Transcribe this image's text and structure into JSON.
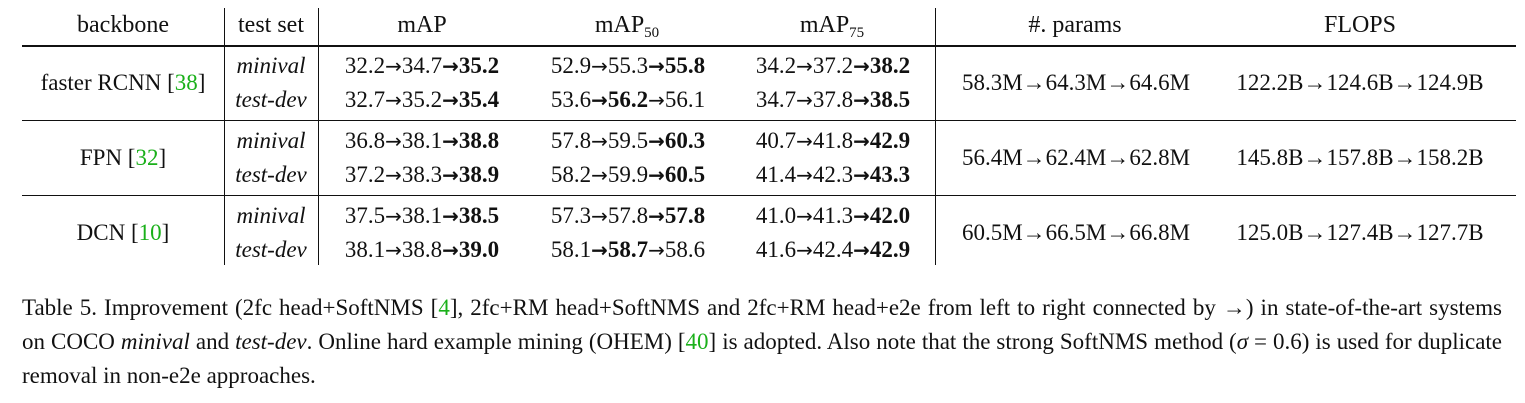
{
  "headers": {
    "backbone": "backbone",
    "test_set": "test set",
    "map": "mAP",
    "map50_base": "mAP",
    "map50_sub": "50",
    "map75_base": "mAP",
    "map75_sub": "75",
    "params": "#. params",
    "flops": "FLOPS"
  },
  "arrow": "→",
  "groups": [
    {
      "backbone": "faster RCNN",
      "cite": "38",
      "params": "58.3M→64.3M→64.6M",
      "flops": "122.2B→124.6B→124.9B",
      "rows": [
        {
          "set": "minival",
          "map": [
            "32.2",
            "34.7",
            "35.2"
          ],
          "map_bold": 2,
          "map50": [
            "52.9",
            "55.3",
            "55.8"
          ],
          "map50_bold": 2,
          "map75": [
            "34.2",
            "37.2",
            "38.2"
          ],
          "map75_bold": 2
        },
        {
          "set": "test-dev",
          "map": [
            "32.7",
            "35.2",
            "35.4"
          ],
          "map_bold": 2,
          "map50": [
            "53.6",
            "56.2",
            "56.1"
          ],
          "map50_bold": 1,
          "map75": [
            "34.7",
            "37.8",
            "38.5"
          ],
          "map75_bold": 2
        }
      ]
    },
    {
      "backbone": "FPN",
      "cite": "32",
      "params": "56.4M→62.4M→62.8M",
      "flops": "145.8B→157.8B→158.2B",
      "rows": [
        {
          "set": "minival",
          "map": [
            "36.8",
            "38.1",
            "38.8"
          ],
          "map_bold": 2,
          "map50": [
            "57.8",
            "59.5",
            "60.3"
          ],
          "map50_bold": 2,
          "map75": [
            "40.7",
            "41.8",
            "42.9"
          ],
          "map75_bold": 2
        },
        {
          "set": "test-dev",
          "map": [
            "37.2",
            "38.3",
            "38.9"
          ],
          "map_bold": 2,
          "map50": [
            "58.2",
            "59.9",
            "60.5"
          ],
          "map50_bold": 2,
          "map75": [
            "41.4",
            "42.3",
            "43.3"
          ],
          "map75_bold": 2
        }
      ]
    },
    {
      "backbone": "DCN",
      "cite": "10",
      "params": "60.5M→66.5M→66.8M",
      "flops": "125.0B→127.4B→127.7B",
      "rows": [
        {
          "set": "minival",
          "map": [
            "37.5",
            "38.1",
            "38.5"
          ],
          "map_bold": 2,
          "map50": [
            "57.3",
            "57.8",
            "57.8"
          ],
          "map50_bold": 2,
          "map75": [
            "41.0",
            "41.3",
            "42.0"
          ],
          "map75_bold": 2
        },
        {
          "set": "test-dev",
          "map": [
            "38.1",
            "38.8",
            "39.0"
          ],
          "map_bold": 2,
          "map50": [
            "58.1",
            "58.7",
            "58.6"
          ],
          "map50_bold": 1,
          "map75": [
            "41.6",
            "42.4",
            "42.9"
          ],
          "map75_bold": 2
        }
      ]
    }
  ],
  "caption": {
    "t1": "Table 5. Improvement (2fc head+SoftNMS [",
    "c1": "4",
    "t2": "], 2fc+RM head+SoftNMS and 2fc+RM head+e2e from left to right connected by →) in state-of-the-art systems on COCO ",
    "i1": "minival",
    "t3": " and ",
    "i2": "test-dev",
    "t4": ". Online hard example mining (OHEM) [",
    "c2": "40",
    "t5": "] is adopted. Also note that the strong SoftNMS method (",
    "sigma": "σ",
    "t6": " = 0.6) is used for duplicate removal in non-e2e approaches."
  }
}
